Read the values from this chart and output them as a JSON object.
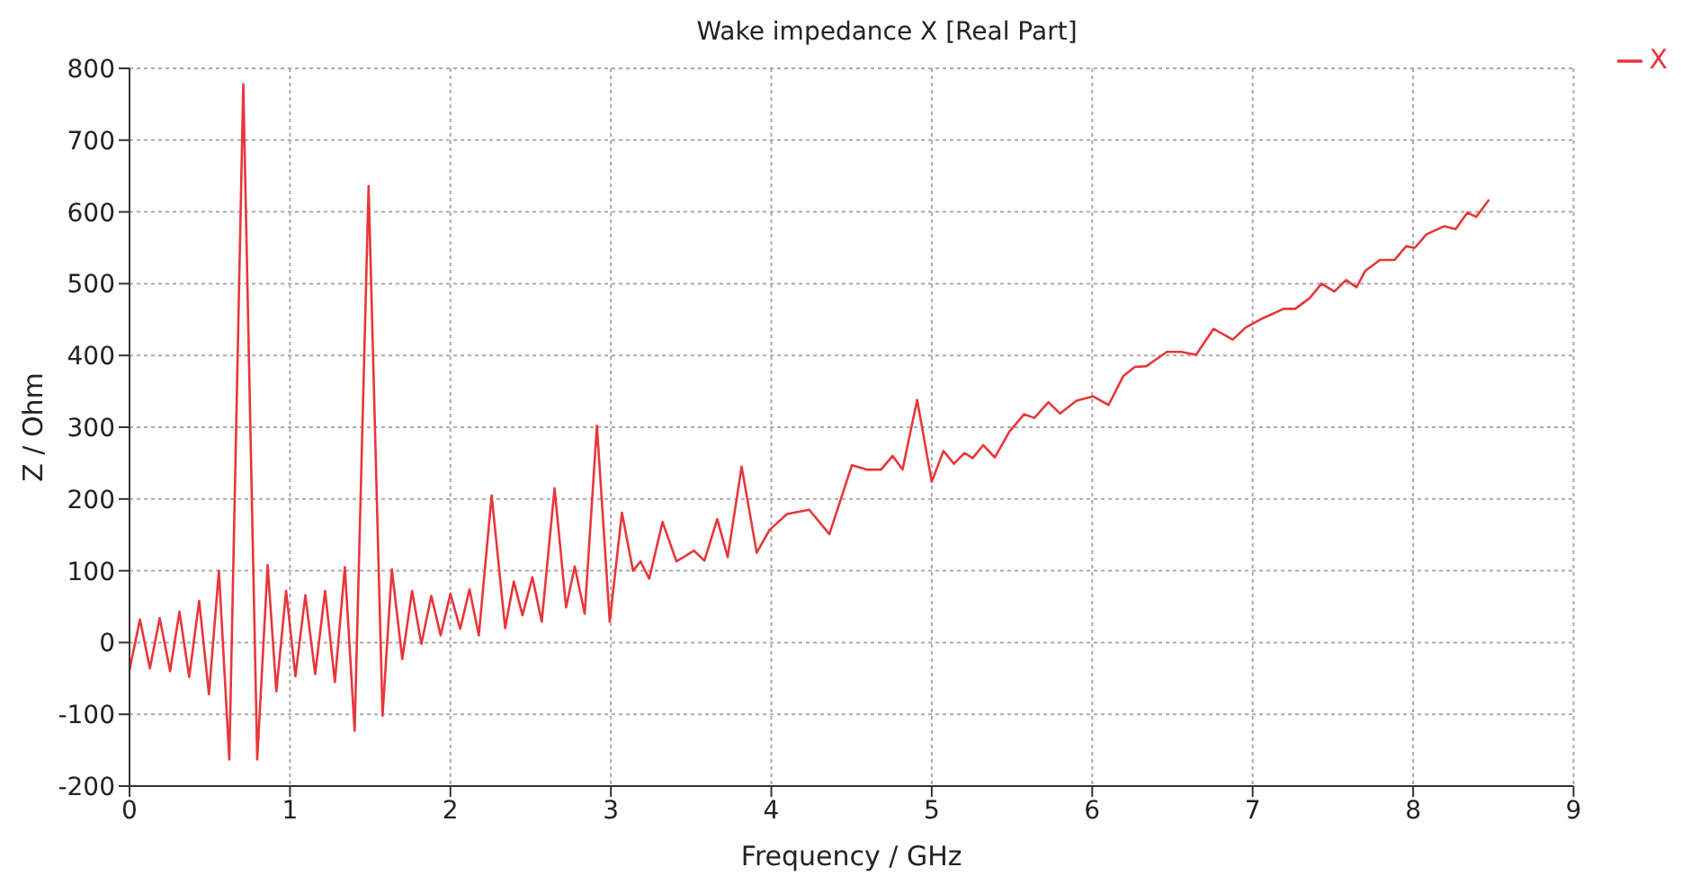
{
  "chart_data": {
    "type": "line",
    "title": "Wake impedance X [Real Part]",
    "xlabel": "Frequency / GHz",
    "ylabel": "Z / Ohm",
    "xlim": [
      0,
      9
    ],
    "xticks": [
      0,
      1,
      2,
      3,
      4,
      5,
      6,
      7,
      8,
      9
    ],
    "ylim": [
      -200,
      800
    ],
    "yticks": [
      -200,
      -100,
      0,
      100,
      200,
      300,
      400,
      500,
      600,
      700,
      800
    ],
    "grid": true,
    "legend": "top right",
    "marker": "none",
    "line_style": "solid",
    "x": [
      0,
      0.065,
      0.127,
      0.188,
      0.253,
      0.311,
      0.372,
      0.434,
      0.495,
      0.557,
      0.622,
      0.709,
      0.796,
      0.861,
      0.915,
      0.976,
      1.034,
      1.096,
      1.157,
      1.219,
      1.28,
      1.342,
      1.403,
      1.49,
      1.577,
      1.635,
      1.7,
      1.761,
      1.819,
      1.881,
      1.939,
      2.0,
      2.061,
      2.119,
      2.177,
      2.257,
      2.341,
      2.395,
      2.449,
      2.511,
      2.569,
      2.649,
      2.721,
      2.775,
      2.837,
      2.913,
      2.993,
      3.069,
      3.138,
      3.185,
      3.239,
      3.322,
      3.409,
      3.518,
      3.583,
      3.663,
      3.728,
      3.815,
      3.909,
      3.989,
      4.098,
      4.236,
      4.362,
      4.502,
      4.593,
      4.684,
      4.756,
      4.818,
      4.909,
      5.0,
      5.073,
      5.138,
      5.204,
      5.255,
      5.32,
      5.393,
      5.484,
      5.575,
      5.64,
      5.727,
      5.8,
      5.902,
      6.004,
      6.102,
      6.193,
      6.265,
      6.338,
      6.465,
      6.556,
      6.647,
      6.756,
      6.876,
      6.956,
      7.065,
      7.193,
      7.265,
      7.356,
      7.429,
      7.509,
      7.582,
      7.647,
      7.702,
      7.793,
      7.884,
      7.956,
      8.011,
      8.084,
      8.193,
      8.265,
      8.338,
      8.393,
      8.473
    ],
    "series": [
      {
        "name": "X",
        "color": "#e8363a",
        "values": [
          -38,
          32,
          -36,
          34,
          -40,
          43,
          -48,
          58,
          -72,
          100,
          -163,
          778,
          -163,
          108,
          -68,
          72,
          -47,
          66,
          -44,
          72,
          -55,
          105,
          -123,
          636,
          -102,
          102,
          -23,
          72,
          -2,
          65,
          10,
          68,
          19,
          74,
          10,
          205,
          20,
          85,
          38,
          91,
          29,
          215,
          49,
          106,
          40,
          302,
          29,
          181,
          100,
          113,
          89,
          168,
          113,
          128,
          114,
          172,
          119,
          245,
          125,
          157,
          179,
          185,
          151,
          247,
          241,
          241,
          260,
          241,
          338,
          224,
          267,
          249,
          264,
          257,
          275,
          258,
          294,
          318,
          313,
          335,
          319,
          337,
          343,
          331,
          371,
          384,
          385,
          405,
          405,
          401,
          437,
          422,
          439,
          452,
          465,
          465,
          480,
          500,
          489,
          505,
          495,
          518,
          533,
          533,
          552,
          550,
          569,
          580,
          576,
          599,
          593,
          617
        ]
      }
    ]
  }
}
